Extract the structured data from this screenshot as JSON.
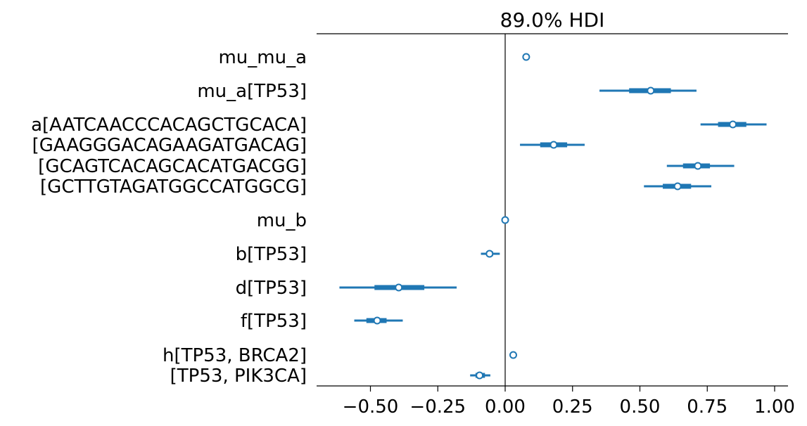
{
  "chart_data": {
    "type": "forest",
    "title": "89.0% HDI",
    "xlim": [
      -0.7,
      1.05
    ],
    "x_ticks": [
      -0.5,
      -0.25,
      0.0,
      0.25,
      0.5,
      0.75,
      1.0
    ],
    "x_tick_labels": [
      "−0.50",
      "−0.25",
      "0.00",
      "0.25",
      "0.50",
      "0.75",
      "1.00"
    ],
    "reference_line": 0.0,
    "color": "#1f77b4",
    "groups": [
      {
        "label_lines": [
          "mu_mu_a"
        ],
        "rows": [
          {
            "mean": 0.078,
            "hdi": [
              0.078,
              0.078
            ],
            "iqr": [
              0.078,
              0.078
            ]
          }
        ]
      },
      {
        "label_lines": [
          "mu_a[TP53]"
        ],
        "rows": [
          {
            "mean": 0.54,
            "hdi": [
              0.35,
              0.71
            ],
            "iqr": [
              0.46,
              0.615
            ]
          }
        ]
      },
      {
        "label_lines": [
          "a[AATCAACCCACAGCTGCACA]",
          "[GAAGGGACAGAAGATGACAG]",
          "[GCAGTCACAGCACATGACGG]",
          "[GCTTGTAGATGGCCATGGCG]"
        ],
        "rows": [
          {
            "mean": 0.845,
            "hdi": [
              0.725,
              0.97
            ],
            "iqr": [
              0.79,
              0.895
            ]
          },
          {
            "mean": 0.18,
            "hdi": [
              0.055,
              0.295
            ],
            "iqr": [
              0.13,
              0.23
            ]
          },
          {
            "mean": 0.715,
            "hdi": [
              0.6,
              0.85
            ],
            "iqr": [
              0.66,
              0.76
            ]
          },
          {
            "mean": 0.64,
            "hdi": [
              0.515,
              0.765
            ],
            "iqr": [
              0.585,
              0.69
            ]
          }
        ]
      },
      {
        "label_lines": [
          "mu_b"
        ],
        "rows": [
          {
            "mean": 0.0,
            "hdi": [
              0.0,
              0.0
            ],
            "iqr": [
              0.0,
              0.0
            ]
          }
        ]
      },
      {
        "label_lines": [
          "b[TP53]"
        ],
        "rows": [
          {
            "mean": -0.058,
            "hdi": [
              -0.09,
              -0.02
            ],
            "iqr": [
              -0.07,
              -0.045
            ]
          }
        ]
      },
      {
        "label_lines": [
          "d[TP53]"
        ],
        "rows": [
          {
            "mean": -0.395,
            "hdi": [
              -0.615,
              -0.18
            ],
            "iqr": [
              -0.485,
              -0.3
            ]
          }
        ]
      },
      {
        "label_lines": [
          "f[TP53]"
        ],
        "rows": [
          {
            "mean": -0.475,
            "hdi": [
              -0.56,
              -0.38
            ],
            "iqr": [
              -0.515,
              -0.44
            ]
          }
        ]
      },
      {
        "label_lines": [
          "h[TP53, BRCA2]",
          "[TP53, PIK3CA]"
        ],
        "rows": [
          {
            "mean": 0.03,
            "hdi": [
              0.018,
              0.04
            ],
            "iqr": [
              0.025,
              0.035
            ]
          },
          {
            "mean": -0.095,
            "hdi": [
              -0.13,
              -0.055
            ],
            "iqr": [
              -0.11,
              -0.075
            ]
          }
        ]
      }
    ]
  }
}
